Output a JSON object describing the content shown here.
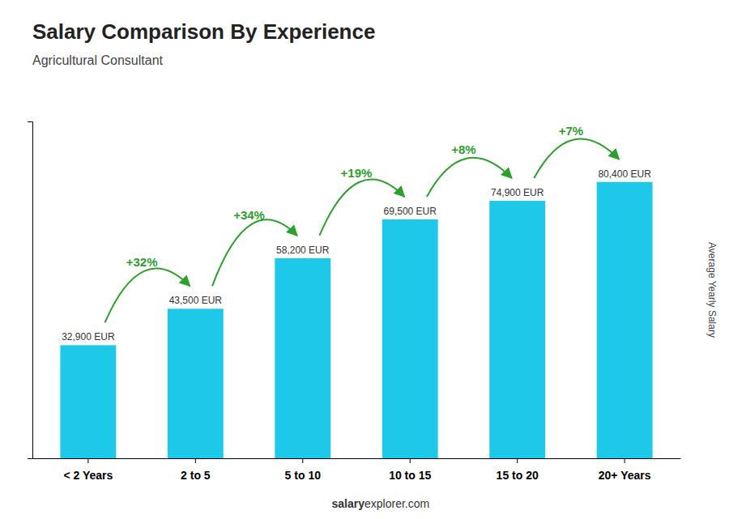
{
  "chart_data": {
    "type": "bar",
    "title": "Salary Comparison By Experience",
    "subtitle": "Agricultural Consultant",
    "categories": [
      "< 2 Years",
      "2 to 5",
      "5 to 10",
      "10 to 15",
      "15 to 20",
      "20+ Years"
    ],
    "values": [
      32900,
      43500,
      58200,
      69500,
      74900,
      80400
    ],
    "value_labels": [
      "32,900 EUR",
      "43,500 EUR",
      "58,200 EUR",
      "69,500 EUR",
      "74,900 EUR",
      "80,400 EUR"
    ],
    "data_labels": true,
    "color": "#1EC8E8",
    "ylabel": "Average Yearly Salary",
    "ylim": [
      0,
      98000
    ],
    "yticks": [],
    "tick_labels": "x",
    "annotations": [
      "+32%",
      "+34%",
      "+19%",
      "+8%",
      "+7%"
    ],
    "footer": [
      "salary",
      "explorer.com"
    ]
  }
}
